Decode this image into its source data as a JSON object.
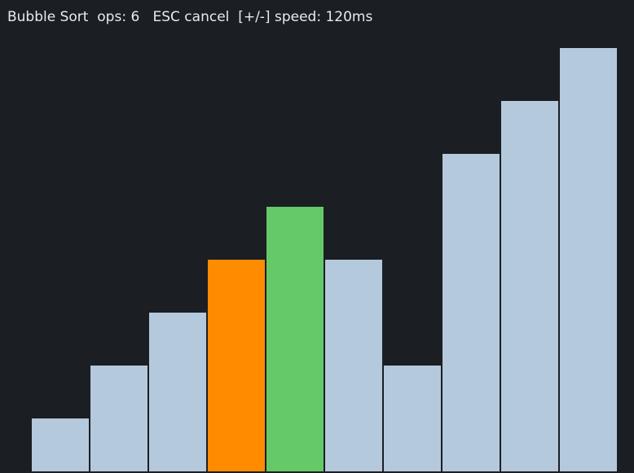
{
  "status": {
    "algorithm": "Bubble Sort",
    "ops_label": "ops:",
    "ops": "6",
    "cancel_hint": "ESC cancel",
    "speed_hint": "[+/-] speed:",
    "speed": "120ms"
  },
  "colors": {
    "background": "#1b1e23",
    "default": "#b5c9dc",
    "comparing": "#ff8c00",
    "swapped": "#65c968"
  },
  "array": [
    {
      "value": 1,
      "state": "default"
    },
    {
      "value": 2,
      "state": "default"
    },
    {
      "value": 3,
      "state": "default"
    },
    {
      "value": 4,
      "state": "comparing"
    },
    {
      "value": 5,
      "state": "swapped"
    },
    {
      "value": 4,
      "state": "default"
    },
    {
      "value": 2,
      "state": "default"
    },
    {
      "value": 6,
      "state": "default"
    },
    {
      "value": 7,
      "state": "default"
    },
    {
      "value": 8,
      "state": "default"
    }
  ]
}
